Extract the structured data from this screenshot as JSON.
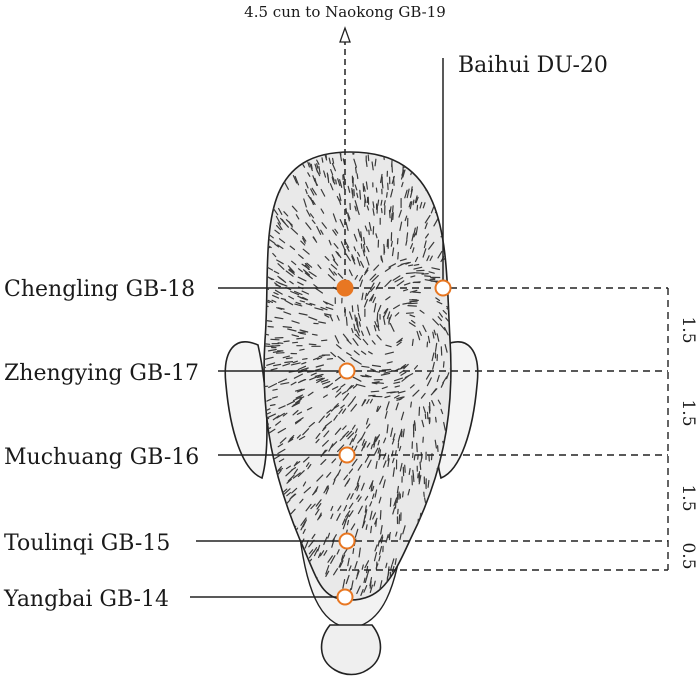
{
  "top_note": "4.5 cun to Naokong GB-19",
  "baihui": {
    "label": "Baihui DU-20"
  },
  "points": [
    {
      "label": "Chengling GB-18",
      "filled": true
    },
    {
      "label": "Zhengying GB-17",
      "filled": false
    },
    {
      "label": "Muchuang GB-16",
      "filled": false
    },
    {
      "label": "Toulinqi GB-15",
      "filled": false
    },
    {
      "label": "Yangbai GB-14",
      "filled": false
    }
  ],
  "measurements": [
    "1.5",
    "1.5",
    "1.5",
    "0.5"
  ],
  "colors": {
    "accent": "#e87722",
    "ink": "#1a1a1a",
    "hair": "#3a3a3a"
  }
}
